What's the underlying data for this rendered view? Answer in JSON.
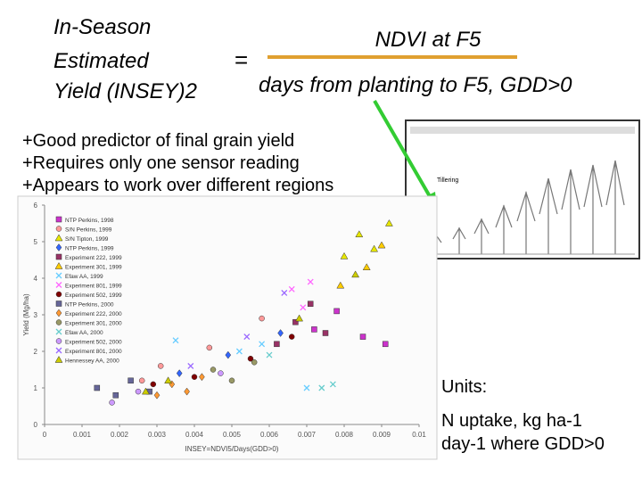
{
  "equation": {
    "lhs": [
      "In-Season",
      "Estimated",
      "Yield (INSEY)2"
    ],
    "equals": "=",
    "numerator": "NDVI at F5",
    "denominator": "days from planting to F5, GDD>0"
  },
  "bullets": [
    "+Good predictor of final grain yield",
    "+Requires only one sensor reading",
    "+Appears to work over different regions"
  ],
  "diagram": {
    "label": "Tillering"
  },
  "units": [
    "Units:",
    "N uptake, kg ha-1",
    "day-1 where GDD>0"
  ],
  "chart_data": {
    "type": "scatter",
    "xlabel": "INSEY=NDVI5/Days(GDD>0)",
    "ylabel": "Yield (Mg/ha)",
    "xlim": [
      0,
      0.01
    ],
    "xticks": [
      0,
      0.001,
      0.002,
      0.003,
      0.004,
      0.005,
      0.006,
      0.007,
      0.008,
      0.009,
      0.01
    ],
    "ylim": [
      0,
      6
    ],
    "yticks": [
      0,
      1,
      2,
      3,
      4,
      5,
      6
    ],
    "series": [
      {
        "name": "NTP Perkins, 1998",
        "color": "#cc33cc",
        "marker": "square",
        "x": [
          0.0072,
          0.0078,
          0.0085,
          0.0091
        ],
        "y": [
          2.6,
          3.1,
          2.4,
          2.2
        ]
      },
      {
        "name": "S/N Perkins, 1999",
        "color": "#ff9999",
        "marker": "circle",
        "x": [
          0.0026,
          0.0031,
          0.0044,
          0.0058
        ],
        "y": [
          1.2,
          1.6,
          2.1,
          2.9
        ]
      },
      {
        "name": "S/N Tipton, 1999",
        "color": "#e6e600",
        "marker": "triangle",
        "x": [
          0.0084,
          0.0088,
          0.0092,
          0.008
        ],
        "y": [
          5.2,
          4.8,
          5.5,
          4.6
        ]
      },
      {
        "name": "NTP Perkins, 1999",
        "color": "#3366ff",
        "marker": "diamond",
        "x": [
          0.0036,
          0.0049,
          0.0063
        ],
        "y": [
          1.4,
          1.9,
          2.5
        ]
      },
      {
        "name": "Experiment 222, 1999",
        "color": "#993366",
        "marker": "square",
        "x": [
          0.0062,
          0.0067,
          0.0071,
          0.0075
        ],
        "y": [
          2.2,
          2.8,
          3.3,
          2.5
        ]
      },
      {
        "name": "Experiment 301, 1999",
        "color": "#ffcc00",
        "marker": "triangle",
        "x": [
          0.0079,
          0.0086,
          0.009
        ],
        "y": [
          3.8,
          4.3,
          4.9
        ]
      },
      {
        "name": "Efaw AA, 1999",
        "color": "#66ccff",
        "marker": "cross",
        "x": [
          0.0035,
          0.0052,
          0.0058,
          0.007
        ],
        "y": [
          2.3,
          2.0,
          2.2,
          1.0
        ]
      },
      {
        "name": "Experiment 801, 1999",
        "color": "#ff66ff",
        "marker": "cross",
        "x": [
          0.0066,
          0.0071,
          0.0069
        ],
        "y": [
          3.7,
          3.9,
          3.2
        ]
      },
      {
        "name": "Experiment 502, 1999",
        "color": "#800000",
        "marker": "circle",
        "x": [
          0.0029,
          0.004,
          0.0055,
          0.0066
        ],
        "y": [
          1.1,
          1.3,
          1.8,
          2.4
        ]
      },
      {
        "name": "NTP Perkins, 2000",
        "color": "#666699",
        "marker": "square",
        "x": [
          0.0014,
          0.0019,
          0.0023,
          0.0028
        ],
        "y": [
          1.0,
          0.8,
          1.2,
          0.9
        ]
      },
      {
        "name": "Experiment 222, 2000",
        "color": "#ff9933",
        "marker": "diamond",
        "x": [
          0.003,
          0.0034,
          0.0038,
          0.0042
        ],
        "y": [
          0.8,
          1.1,
          0.9,
          1.3
        ]
      },
      {
        "name": "Experiment 301, 2000",
        "color": "#999966",
        "marker": "circle",
        "x": [
          0.0045,
          0.005,
          0.0056
        ],
        "y": [
          1.5,
          1.2,
          1.7
        ]
      },
      {
        "name": "Efaw AA, 2000",
        "color": "#66cccc",
        "marker": "cross",
        "x": [
          0.006,
          0.0074,
          0.0077
        ],
        "y": [
          1.9,
          1.0,
          1.1
        ]
      },
      {
        "name": "Experiment 502, 2000",
        "color": "#cc99ff",
        "marker": "circle",
        "x": [
          0.0018,
          0.0025,
          0.0047
        ],
        "y": [
          0.6,
          0.9,
          1.4
        ]
      },
      {
        "name": "Experiment 801, 2000",
        "color": "#9966ff",
        "marker": "cross",
        "x": [
          0.0039,
          0.0054,
          0.0064
        ],
        "y": [
          1.6,
          2.4,
          3.6
        ]
      },
      {
        "name": "Hennessey AA, 2000",
        "color": "#cccc00",
        "marker": "triangle",
        "x": [
          0.0027,
          0.0033,
          0.0068,
          0.0083
        ],
        "y": [
          0.9,
          1.2,
          2.9,
          4.1
        ]
      }
    ]
  }
}
